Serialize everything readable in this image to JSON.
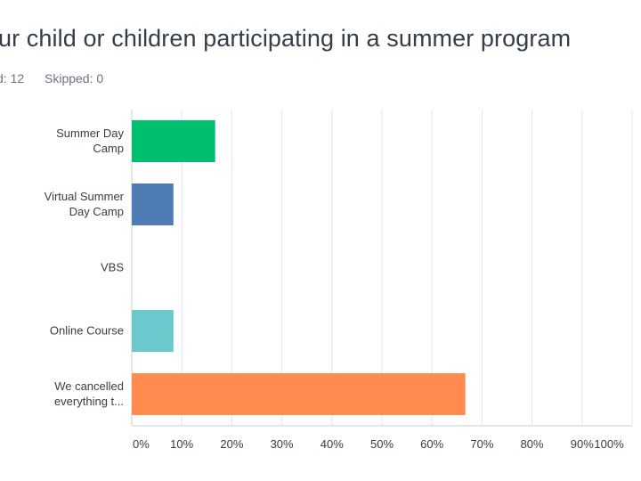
{
  "header": {
    "title": "ur child or children participating in a summer program",
    "answered": "d: 12",
    "skipped": "Skipped: 0"
  },
  "chart_data": {
    "type": "bar",
    "orientation": "horizontal",
    "categories": [
      [
        "Summer Day",
        "Camp"
      ],
      [
        "Virtual Summer",
        "Day Camp"
      ],
      [
        "VBS"
      ],
      [
        "Online Course"
      ],
      [
        "We cancelled",
        "everything t..."
      ]
    ],
    "values": [
      16.67,
      8.33,
      0,
      8.33,
      66.67
    ],
    "colors": [
      "#00bf6f",
      "#507cb6",
      "#6bc8cd",
      "#6bc8cd",
      "#ff8b4f"
    ],
    "xlim": [
      0,
      100
    ],
    "ticks": [
      "0%",
      "10%",
      "20%",
      "30%",
      "40%",
      "50%",
      "60%",
      "70%",
      "80%",
      "90%",
      "100%"
    ],
    "grid": true
  }
}
